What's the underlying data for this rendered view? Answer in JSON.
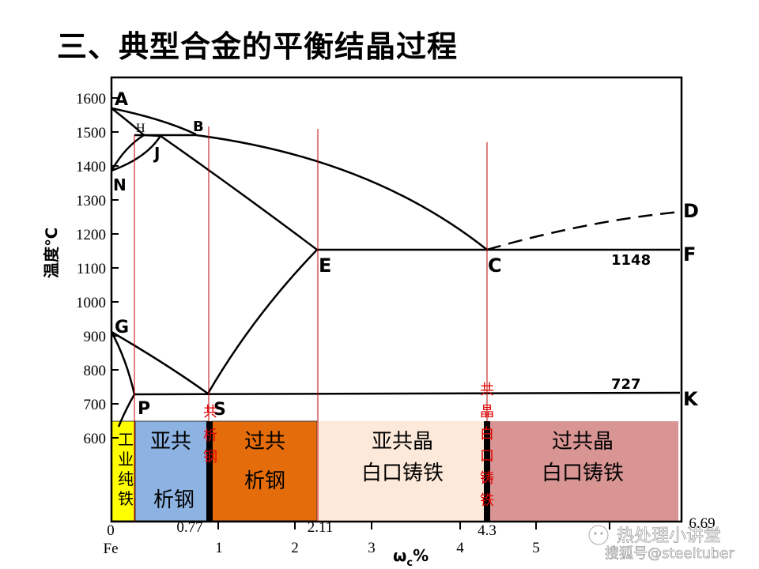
{
  "title": "三、典型合金的平衡结晶过程",
  "axes": {
    "y_label": "温度℃",
    "y_ticks": [
      "1600",
      "1500",
      "1400",
      "1300",
      "1200",
      "1100",
      "1000",
      "900",
      "800",
      "700",
      "600"
    ],
    "x_label_main": "ω",
    "x_label_sub": "c",
    "x_label_pct": "%",
    "x_ticks": [
      "1",
      "2",
      "3",
      "4",
      "5"
    ],
    "x_origin": "0",
    "x_fe": "Fe",
    "x_special": {
      "s": "0.77",
      "e": "2.11",
      "c": "4.3",
      "end": "6.69"
    }
  },
  "points": {
    "A": "A",
    "H": "H",
    "B": "B",
    "J": "J",
    "N": "N",
    "D": "D",
    "E": "E",
    "C": "C",
    "F": "F",
    "G": "G",
    "P": "P",
    "S": "S",
    "K": "K",
    "iso_1148": "1148",
    "iso_727": "727"
  },
  "regions": {
    "pure_iron": [
      "工",
      "业",
      "纯",
      "铁"
    ],
    "hypo_steel": {
      "top": "亚共",
      "bottom": "析钢"
    },
    "eutectoid_steel": [
      "共",
      "析",
      "钢"
    ],
    "hyper_steel": {
      "top": "过共",
      "bottom": "析钢"
    },
    "hypo_iron": {
      "top": "亚共晶",
      "bottom": "白口铸铁"
    },
    "eutectic_iron": [
      "共",
      "晶",
      "白",
      "口",
      "铸",
      "铁"
    ],
    "hyper_iron": {
      "top": "过共晶",
      "bottom": "白口铸铁"
    }
  },
  "colors": {
    "pure_iron": "#ffff00",
    "hypo_steel": "#8db3e2",
    "hyper_steel": "#e46c0a",
    "hypo_iron": "#fde9d9",
    "hyper_iron": "#d99594",
    "divider": "#c00000",
    "label_red": "#e00000"
  },
  "watermark": {
    "line1": "热处理小讲堂",
    "line2": "搜狐号@steeltuber"
  }
}
